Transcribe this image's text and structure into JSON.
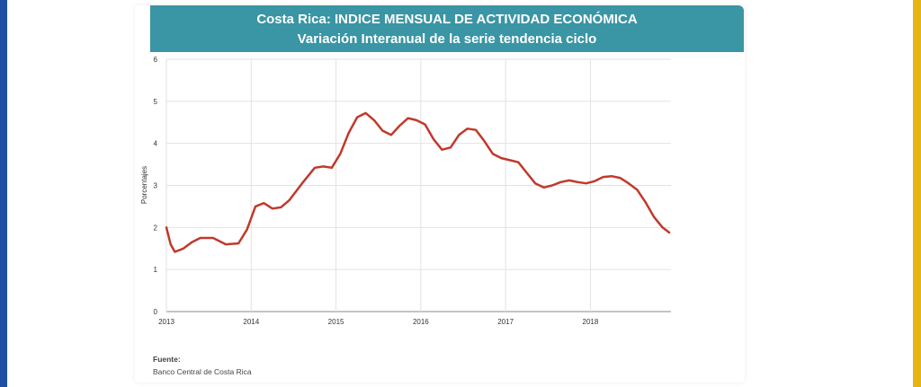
{
  "colors": {
    "left_edge": "#1f4fa3",
    "right_edge": "#e7b416",
    "header": "#3a95a4",
    "line": "#c0392b"
  },
  "header": {
    "title": "Costa Rica: INDICE MENSUAL DE ACTIVIDAD ECONÓMICA",
    "subtitle": "Variación Interanual de la serie tendencia ciclo"
  },
  "source": {
    "label": "Fuente:",
    "text": "Banco Central de Costa Rica"
  },
  "chart_data": {
    "type": "line",
    "title": "Costa Rica: INDICE MENSUAL DE ACTIVIDAD ECONÓMICA",
    "subtitle": "Variación Interanual de la serie tendencia ciclo",
    "xlabel": "",
    "ylabel": "Porcentajes",
    "xlim": [
      2013.0,
      2018.95
    ],
    "ylim": [
      0,
      6
    ],
    "grid": true,
    "x_ticks": [
      2013,
      2014,
      2015,
      2016,
      2017,
      2018
    ],
    "y_ticks": [
      0,
      1,
      2,
      3,
      4,
      5,
      6
    ],
    "series": [
      {
        "color": "#c0392b",
        "x": [
          2013.0,
          2013.05,
          2013.1,
          2013.2,
          2013.3,
          2013.4,
          2013.55,
          2013.7,
          2013.85,
          2013.95,
          2014.05,
          2014.15,
          2014.25,
          2014.35,
          2014.45,
          2014.6,
          2014.75,
          2014.85,
          2014.95,
          2015.05,
          2015.15,
          2015.25,
          2015.35,
          2015.45,
          2015.55,
          2015.65,
          2015.75,
          2015.85,
          2015.95,
          2016.05,
          2016.15,
          2016.25,
          2016.35,
          2016.45,
          2016.55,
          2016.65,
          2016.75,
          2016.85,
          2016.95,
          2017.05,
          2017.15,
          2017.25,
          2017.35,
          2017.45,
          2017.55,
          2017.65,
          2017.75,
          2017.85,
          2017.95,
          2018.05,
          2018.15,
          2018.25,
          2018.35,
          2018.45,
          2018.55,
          2018.65,
          2018.75,
          2018.85,
          2018.93
        ],
        "y": [
          2.0,
          1.6,
          1.42,
          1.5,
          1.65,
          1.75,
          1.75,
          1.6,
          1.62,
          1.95,
          2.5,
          2.58,
          2.45,
          2.48,
          2.65,
          3.05,
          3.42,
          3.45,
          3.42,
          3.75,
          4.25,
          4.62,
          4.72,
          4.55,
          4.3,
          4.2,
          4.42,
          4.6,
          4.55,
          4.45,
          4.1,
          3.85,
          3.9,
          4.2,
          4.35,
          4.32,
          4.05,
          3.75,
          3.65,
          3.6,
          3.55,
          3.3,
          3.05,
          2.95,
          3.0,
          3.08,
          3.12,
          3.08,
          3.05,
          3.1,
          3.2,
          3.22,
          3.18,
          3.05,
          2.9,
          2.6,
          2.25,
          2.0,
          1.88
        ]
      }
    ]
  }
}
